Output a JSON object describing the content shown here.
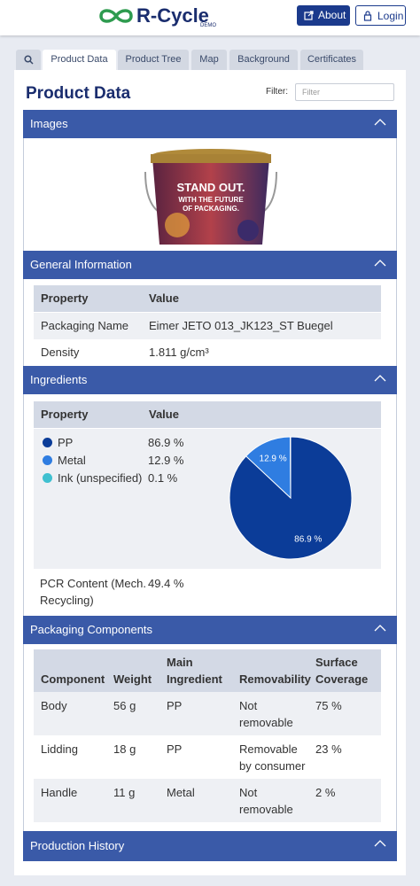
{
  "header": {
    "logo": "R-Cycle",
    "badge": "DEMO",
    "buttons": [
      "About",
      "Login"
    ]
  },
  "tabs": [
    "Product Data",
    "Product Tree",
    "Map",
    "Background",
    "Certificates"
  ],
  "page": {
    "title": "Product Data",
    "filter_label": "Filter:",
    "filter_placeholder": "Filter"
  },
  "sections": {
    "images": {
      "title": "Images",
      "image_text": [
        "STAND OUT.",
        "WITH THE FUTURE",
        "OF PACKAGING."
      ]
    },
    "general": {
      "title": "General Information",
      "columns": [
        "Property",
        "Value"
      ],
      "rows": [
        [
          "Packaging Name",
          "Eimer JETO 013_JK123_ST Buegel"
        ],
        [
          "Density",
          "1.811 g/cm³"
        ]
      ]
    },
    "ingredients": {
      "title": "Ingredients",
      "columns": [
        "Property",
        "Value"
      ],
      "names": [
        "PP",
        "Metal",
        "Ink (unspecified)"
      ],
      "values": [
        86.9,
        12.9,
        0.1
      ],
      "value_labels": [
        "86.9 %",
        "12.9 %",
        "0.1 %"
      ],
      "colors": [
        "#0b3c98",
        "#2f7de1",
        "#3fc0d0"
      ],
      "pcr": {
        "label": "PCR Content (Mech. Recycling)",
        "value": "49.4 %"
      }
    },
    "components": {
      "title": "Packaging Components",
      "columns": [
        "Component",
        "Weight",
        "Main Ingredient",
        "Removability",
        "Surface Coverage"
      ],
      "rows": [
        [
          "Body",
          "56 g",
          "PP",
          "Not removable",
          "75 %"
        ],
        [
          "Lidding",
          "18 g",
          "PP",
          "Removable by consumer",
          "23 %"
        ],
        [
          "Handle",
          "11 g",
          "Metal",
          "Not removable",
          "2 %"
        ]
      ]
    },
    "history": {
      "title": "Production History"
    }
  }
}
